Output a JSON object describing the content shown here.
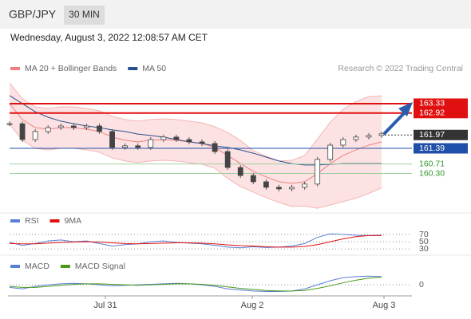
{
  "header": {
    "symbol": "GBP/JPY",
    "interval": "30 MIN",
    "timestamp": "Wednesday, August 3, 2022 12:08:57 AM CET"
  },
  "chart_data": [
    {
      "type": "candlestick",
      "legend": [
        {
          "name": "MA 20 + Bollinger Bands",
          "color": "#f08080"
        },
        {
          "name": "MA 50",
          "color": "#2a4f8f"
        }
      ],
      "credit": "Research © 2022 Trading Central",
      "ylim": [
        158.76,
        164.54
      ],
      "close": [
        162.46,
        161.77,
        162.12,
        162.29,
        162.36,
        162.29,
        162.36,
        162.12,
        161.43,
        161.5,
        161.43,
        161.77,
        161.88,
        161.77,
        161.67,
        161.6,
        161.25,
        160.56,
        160.21,
        159.94,
        159.7,
        159.63,
        159.7,
        159.84,
        160.91,
        161.53,
        161.77,
        161.88,
        161.95,
        162.02
      ],
      "series": [
        {
          "name": "MA 20",
          "color": "#f08080",
          "values": [
            163.33,
            162.64,
            162.29,
            162.22,
            162.29,
            162.29,
            162.22,
            162.12,
            161.88,
            161.74,
            161.67,
            161.74,
            161.77,
            161.74,
            161.67,
            161.6,
            161.43,
            161.08,
            160.73,
            160.39,
            160.15,
            159.94,
            159.87,
            159.94,
            160.29,
            160.73,
            161.08,
            161.32,
            161.53,
            161.67
          ]
        },
        {
          "name": "Upper band",
          "color": "#f4b6b6",
          "values": [
            164.23,
            163.54,
            163.19,
            163.12,
            163.19,
            163.19,
            163.12,
            163.02,
            162.78,
            162.64,
            162.57,
            162.64,
            162.67,
            162.64,
            162.57,
            162.5,
            162.33,
            162.08,
            161.73,
            161.29,
            161.05,
            160.84,
            160.87,
            161.08,
            161.79,
            162.53,
            163.08,
            163.42,
            163.63,
            163.67
          ]
        },
        {
          "name": "Lower band",
          "color": "#f4b6b6",
          "values": [
            162.43,
            161.74,
            161.39,
            161.32,
            161.39,
            161.39,
            161.32,
            161.22,
            160.98,
            160.84,
            160.77,
            160.84,
            160.87,
            160.84,
            160.77,
            160.7,
            160.53,
            160.08,
            159.73,
            159.49,
            159.25,
            159.04,
            158.87,
            158.88,
            158.79,
            158.93,
            159.08,
            159.22,
            159.43,
            159.67
          ]
        },
        {
          "name": "MA 50",
          "color": "#2a4f8f",
          "values": [
            163.68,
            163.33,
            162.98,
            162.74,
            162.57,
            162.46,
            162.36,
            162.29,
            162.19,
            162.12,
            162.01,
            161.95,
            161.88,
            161.77,
            161.67,
            161.6,
            161.5,
            161.43,
            161.32,
            161.18,
            161.01,
            160.84,
            160.73,
            160.67,
            160.67,
            160.7,
            160.73,
            160.73,
            160.73,
            160.73
          ]
        }
      ],
      "levels": [
        {
          "value": 163.33,
          "label": "163.33",
          "color": "#e01010"
        },
        {
          "value": 162.92,
          "label": "162.92",
          "color": "#e01010"
        },
        {
          "value": 161.97,
          "label": "161.97",
          "color": "#333333"
        },
        {
          "value": 161.39,
          "label": "161.39",
          "color": "#1f4fa8"
        },
        {
          "value": 160.71,
          "label": "160.71",
          "color": "#2e9b2e"
        },
        {
          "value": 160.3,
          "label": "160.30",
          "color": "#2e9b2e"
        }
      ]
    },
    {
      "type": "line",
      "ylim": [
        17,
        90
      ],
      "yticks": [
        70,
        50,
        30
      ],
      "series": [
        {
          "name": "RSI",
          "color": "#5b7fd6",
          "values": [
            48,
            40,
            45,
            52,
            55,
            50,
            52,
            45,
            38,
            42,
            44,
            50,
            52,
            48,
            46,
            44,
            40,
            35,
            33,
            36,
            34,
            35,
            38,
            45,
            62,
            72,
            70,
            68,
            67,
            68
          ]
        },
        {
          "name": "9MA",
          "color": "#e01010",
          "values": [
            45,
            44,
            44,
            46,
            48,
            49,
            50,
            49,
            47,
            45,
            44,
            45,
            46,
            47,
            47,
            46,
            44,
            41,
            39,
            38,
            36,
            35,
            35,
            37,
            42,
            50,
            58,
            64,
            67,
            67
          ]
        }
      ]
    },
    {
      "type": "line",
      "ylim": [
        -0.2,
        0.5
      ],
      "yticks": [
        0
      ],
      "x_labels": [
        "Jul 31",
        "Aug 2",
        "Aug 3"
      ],
      "series": [
        {
          "name": "MACD",
          "color": "#5b7fd6",
          "values": [
            -0.05,
            -0.08,
            -0.03,
            0.0,
            0.02,
            0.03,
            0.02,
            0.0,
            -0.02,
            -0.01,
            0.0,
            0.01,
            0.02,
            0.03,
            0.02,
            0.0,
            -0.03,
            -0.08,
            -0.1,
            -0.12,
            -0.13,
            -0.13,
            -0.12,
            -0.08,
            0.0,
            0.08,
            0.14,
            0.16,
            0.17,
            0.16
          ]
        },
        {
          "name": "MACD Signal",
          "color": "#4a9a1a",
          "values": [
            -0.03,
            -0.05,
            -0.05,
            -0.03,
            -0.01,
            0.01,
            0.02,
            0.02,
            0.01,
            0.0,
            -0.01,
            0.0,
            0.01,
            0.02,
            0.02,
            0.01,
            -0.01,
            -0.04,
            -0.07,
            -0.09,
            -0.11,
            -0.12,
            -0.12,
            -0.11,
            -0.07,
            -0.02,
            0.04,
            0.09,
            0.13,
            0.15
          ]
        }
      ]
    }
  ]
}
